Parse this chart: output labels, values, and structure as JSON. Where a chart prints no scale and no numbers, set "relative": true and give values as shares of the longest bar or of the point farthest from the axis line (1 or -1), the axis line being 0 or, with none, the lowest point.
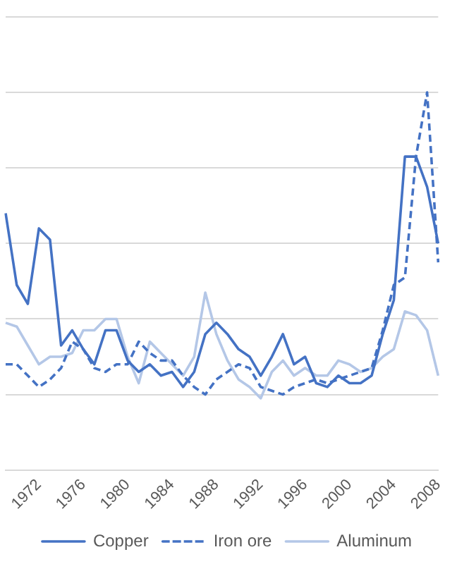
{
  "chart_data": {
    "type": "line",
    "relative": true,
    "grid": "y",
    "legend": "bottom",
    "marker": "none",
    "categories": [
      null,
      null,
      null,
      "1972",
      null,
      null,
      null,
      "1976",
      null,
      null,
      null,
      "1980",
      null,
      null,
      null,
      "1984",
      null,
      null,
      null,
      "1988",
      null,
      null,
      null,
      "1992",
      null,
      null,
      null,
      "1996",
      null,
      null,
      null,
      "2000",
      null,
      null,
      null,
      "2004",
      null,
      null,
      null,
      "2008"
    ],
    "series": [
      {
        "name": "Copper",
        "color": "#4472c4",
        "line_style": "solid",
        "values": [
          0.68,
          0.49,
          0.44,
          0.64,
          0.61,
          0.33,
          0.37,
          0.32,
          0.28,
          0.37,
          0.37,
          0.29,
          0.26,
          0.28,
          0.25,
          0.26,
          0.22,
          0.26,
          0.36,
          0.39,
          0.36,
          0.32,
          0.3,
          0.25,
          0.3,
          0.36,
          0.28,
          0.3,
          0.23,
          0.22,
          0.25,
          0.23,
          0.23,
          0.25,
          0.36,
          0.45,
          0.83,
          0.83,
          0.75,
          0.6
        ]
      },
      {
        "name": "Iron ore",
        "color": "#4472c4",
        "line_style": "dashed",
        "values": [
          0.28,
          0.28,
          0.25,
          0.22,
          0.24,
          0.27,
          0.34,
          0.32,
          0.27,
          0.26,
          0.28,
          0.28,
          0.34,
          0.31,
          0.29,
          0.29,
          0.25,
          0.22,
          0.2,
          0.24,
          0.26,
          0.28,
          0.27,
          0.22,
          0.21,
          0.2,
          0.22,
          0.23,
          0.24,
          0.23,
          0.24,
          0.25,
          0.26,
          0.27,
          0.37,
          0.49,
          0.51,
          0.83,
          1.0,
          0.55
        ]
      },
      {
        "name": "Aluminum",
        "color": "#b4c7e7",
        "line_style": "solid",
        "values": [
          0.39,
          0.38,
          0.33,
          0.28,
          0.3,
          0.3,
          0.31,
          0.37,
          0.37,
          0.4,
          0.4,
          0.3,
          0.23,
          0.34,
          0.31,
          0.28,
          0.25,
          0.3,
          0.47,
          0.36,
          0.29,
          0.24,
          0.22,
          0.19,
          0.26,
          0.29,
          0.25,
          0.27,
          0.25,
          0.25,
          0.29,
          0.28,
          0.26,
          0.27,
          0.3,
          0.32,
          0.42,
          0.41,
          0.37,
          0.25
        ]
      }
    ]
  }
}
